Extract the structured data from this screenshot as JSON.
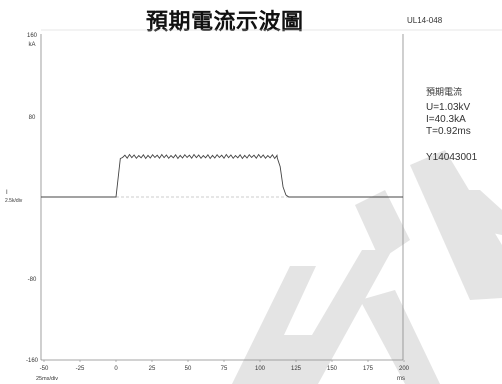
{
  "header": {
    "title": "預期電流示波圖",
    "code": "UL14-048"
  },
  "info": {
    "label": "預期電流",
    "voltage": "U=1.03kV",
    "current": "I=40.3kA",
    "time": "T=0.92ms",
    "serial": "Y14043001"
  },
  "axis": {
    "y_unit": "kA",
    "y_tick_labels": [
      "160",
      "80",
      "-80",
      "-160"
    ],
    "x_tick_labels": [
      "-50",
      "-25",
      "0",
      "25",
      "50",
      "75",
      "100",
      "125",
      "150",
      "175",
      "200"
    ],
    "x_unit": "ms",
    "x_scale_label": "25ms/div",
    "y_channel_label": "I",
    "y_scale_label": "2.5k/div"
  },
  "chart_data": {
    "type": "line",
    "title": "預期電流示波圖",
    "xlabel": "ms",
    "ylabel": "kA",
    "xlim": [
      -50,
      200
    ],
    "ylim": [
      -160,
      160
    ],
    "grid": false,
    "series": [
      {
        "name": "I",
        "x": [
          -50,
          0,
          0.5,
          3,
          6,
          100,
          112,
          114,
          116,
          118,
          120,
          200
        ],
        "y": [
          0,
          0,
          10,
          38,
          40,
          40,
          40,
          35,
          15,
          3,
          0,
          0
        ]
      }
    ],
    "baseline": 0
  },
  "colors": {
    "trace": "#444444",
    "axis": "#888888",
    "watermark": "#e4e4e4",
    "text": "#333333"
  }
}
